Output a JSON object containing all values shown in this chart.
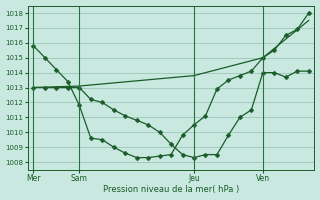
{
  "title": "Pression niveau de la mer( hPa )",
  "bg_color": "#c8e8e0",
  "grid_color": "#90c0b0",
  "line_color": "#1a5c28",
  "vline_color": "#2a7040",
  "ylim": [
    1007.5,
    1018.5
  ],
  "yticks": [
    1008,
    1009,
    1010,
    1011,
    1012,
    1013,
    1014,
    1015,
    1016,
    1017,
    1018
  ],
  "xtick_labels": [
    "Mer",
    "Sam",
    "Jeu",
    "Ven"
  ],
  "xtick_positions": [
    0,
    4,
    14,
    20
  ],
  "xlim": [
    -0.5,
    24.5
  ],
  "line1_x": [
    0,
    1,
    2,
    3,
    4,
    5,
    6,
    7,
    8,
    9,
    10,
    11,
    12,
    13,
    14,
    15,
    16,
    17,
    18,
    19,
    20,
    21,
    22,
    23,
    24
  ],
  "line1_y": [
    1015.8,
    1015.0,
    1014.2,
    1013.4,
    1011.8,
    1009.6,
    1009.5,
    1009.0,
    1008.6,
    1008.3,
    1008.3,
    1008.4,
    1008.5,
    1009.8,
    1010.5,
    1011.1,
    1012.9,
    1013.5,
    1013.8,
    1014.1,
    1015.0,
    1015.5,
    1016.5,
    1016.9,
    1018.0
  ],
  "line2_x": [
    0,
    1,
    2,
    3,
    4,
    5,
    6,
    7,
    8,
    9,
    10,
    11,
    12,
    13,
    14,
    15,
    16,
    17,
    18,
    19,
    20,
    21,
    22,
    23,
    24
  ],
  "line2_y": [
    1013.0,
    1013.0,
    1013.0,
    1013.0,
    1013.0,
    1012.2,
    1012.0,
    1011.5,
    1011.1,
    1010.8,
    1010.5,
    1010.0,
    1009.2,
    1008.5,
    1008.3,
    1008.5,
    1008.5,
    1009.8,
    1011.0,
    1011.5,
    1014.0,
    1014.0,
    1013.7,
    1014.1,
    1014.1
  ],
  "line3_x": [
    0,
    4,
    14,
    20,
    24
  ],
  "line3_y": [
    1013.0,
    1013.1,
    1013.8,
    1015.0,
    1017.5
  ]
}
